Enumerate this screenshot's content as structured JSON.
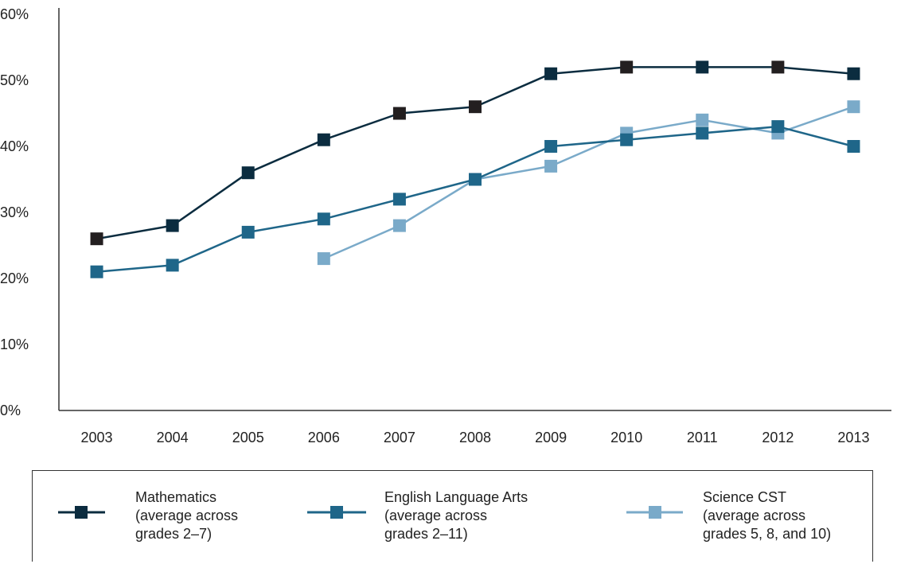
{
  "chart_data": {
    "type": "line",
    "x": [
      "2003",
      "2004",
      "2005",
      "2006",
      "2007",
      "2008",
      "2009",
      "2010",
      "2011",
      "2012",
      "2013"
    ],
    "ylim": [
      0,
      60
    ],
    "yticks": [
      "0%",
      "10%",
      "20%",
      "30%",
      "40%",
      "50%",
      "60%"
    ],
    "ytick_values": [
      0,
      10,
      20,
      30,
      40,
      50,
      60
    ],
    "grid": false,
    "legend_position": "bottom",
    "series": [
      {
        "name": "Mathematics",
        "label_lines": [
          "Mathematics",
          "(average across",
          "grades 2–7)"
        ],
        "color": "#0b2c3f",
        "marker_colors": [
          "#231f20",
          "#0b2c3f",
          "#0b2c3f",
          "#0b2c3f",
          "#231f20",
          "#231f20",
          "#0b2c3f",
          "#231f20",
          "#0b2c3f",
          "#231f20",
          "#0b2c3f"
        ],
        "values": [
          26,
          28,
          36,
          41,
          45,
          46,
          51,
          52,
          52,
          52,
          51
        ]
      },
      {
        "name": "English Language Arts",
        "label_lines": [
          "English Language Arts",
          "(average across",
          "grades 2–11)"
        ],
        "color": "#1f6689",
        "values": [
          21,
          22,
          27,
          29,
          32,
          35,
          40,
          41,
          42,
          43,
          40
        ]
      },
      {
        "name": "Science CST",
        "label_lines": [
          "Science CST",
          "(average across",
          "grades 5, 8, and 10)"
        ],
        "color": "#7aaac9",
        "values": [
          null,
          null,
          null,
          23,
          28,
          35,
          37,
          42,
          44,
          42,
          46
        ]
      }
    ]
  }
}
